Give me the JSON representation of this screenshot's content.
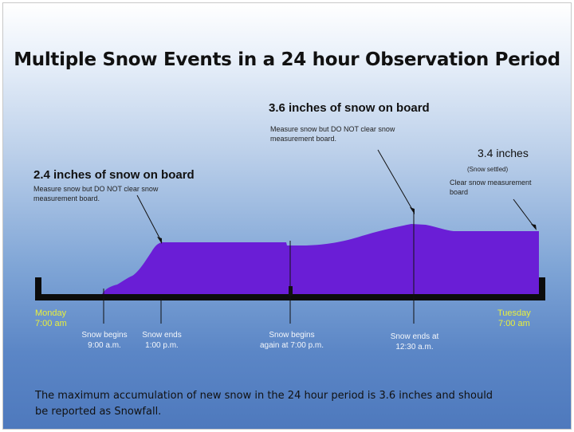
{
  "title": "Multiple Snow Events in a 24 hour Observation Period",
  "annotations": {
    "event1_heading": "2.4 inches of snow on board",
    "event1_note_line1": "Measure snow but DO NOT clear snow",
    "event1_note_line2": "measurement board.",
    "event2_heading": "3.6 inches of snow on board",
    "event2_note_line1": "Measure snow but DO NOT clear snow",
    "event2_note_line2": "measurement board.",
    "final_heading": "3.4 inches",
    "final_note_1": "(Snow settled)",
    "final_note_2": "Clear snow measurement",
    "final_note_3": "board"
  },
  "timeline": {
    "start_day": "Monday",
    "start_time": "7:00 am",
    "end_day": "Tuesday",
    "end_time": "7:00 am",
    "events": [
      {
        "line1": "Snow begins",
        "line2": "9:00 a.m."
      },
      {
        "line1": "Snow ends",
        "line2": "1:00 p.m."
      },
      {
        "line1": "Snow begins",
        "line2": "again at 7:00 p.m."
      },
      {
        "line1": "Snow ends at",
        "line2": "12:30 a.m."
      }
    ]
  },
  "footer": {
    "line1": "The maximum accumulation of new snow in the 24 hour period  is 3.6 inches and should",
    "line2": "be reported as Snowfall."
  },
  "colors": {
    "snow_fill": "#6a1ed6",
    "board": "#0c0c0c",
    "time_labels": "#e8ef3c"
  }
}
